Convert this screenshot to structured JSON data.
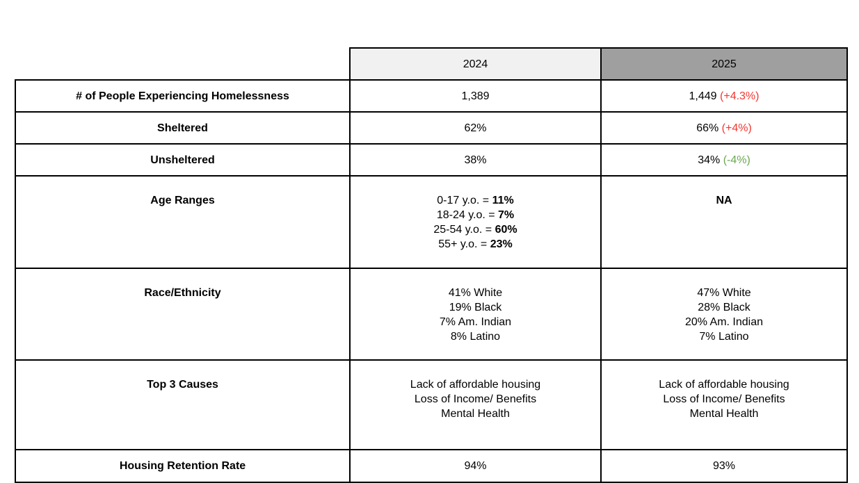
{
  "page": {
    "background": "#ffffff"
  },
  "table": {
    "columns": [
      "2024",
      "2025"
    ],
    "style": {
      "header_2024_bg": "#f1f1f1",
      "header_2025_bg": "#9f9f9f",
      "border_color": "#000000",
      "increase_color": "#f43630",
      "decrease_color": "#6aa84f"
    },
    "rows": [
      {
        "label": "# of People Experiencing Homelessness",
        "y2024": "1,389",
        "y2025": "1,449",
        "y2025_delta": "(+4.3%)",
        "delta_direction": "increase"
      },
      {
        "label": "Sheltered",
        "y2024": "62%",
        "y2025": "66%",
        "y2025_delta": "(+4%)",
        "delta_direction": "increase"
      },
      {
        "label": "Unsheltered",
        "y2024": "38%",
        "y2025": "34%",
        "y2025_delta": "(-4%)",
        "delta_direction": "decrease"
      },
      {
        "label": "Age Ranges",
        "y2024_lines": [
          {
            "prefix": "0-17 y.o. = ",
            "value": "11%"
          },
          {
            "prefix": "18-24 y.o. = ",
            "value": "7%"
          },
          {
            "prefix": "25-54 y.o. = ",
            "value": "60%"
          },
          {
            "prefix": "55+ y.o. = ",
            "value": "23%"
          }
        ],
        "y2025": "NA"
      },
      {
        "label": "Race/Ethnicity",
        "y2024_lines": [
          "41% White",
          "19% Black",
          "7% Am. Indian",
          "8% Latino"
        ],
        "y2025_lines": [
          "47% White",
          "28% Black",
          "20% Am. Indian",
          "7% Latino"
        ]
      },
      {
        "label": "Top 3 Causes",
        "y2024_lines": [
          "Lack of affordable housing",
          "Loss of Income/ Benefits",
          "Mental Health"
        ],
        "y2025_lines": [
          "Lack of affordable housing",
          "Loss of Income/ Benefits",
          "Mental Health"
        ]
      },
      {
        "label": "Housing Retention Rate",
        "y2024": "94%",
        "y2025": "93%"
      }
    ]
  }
}
